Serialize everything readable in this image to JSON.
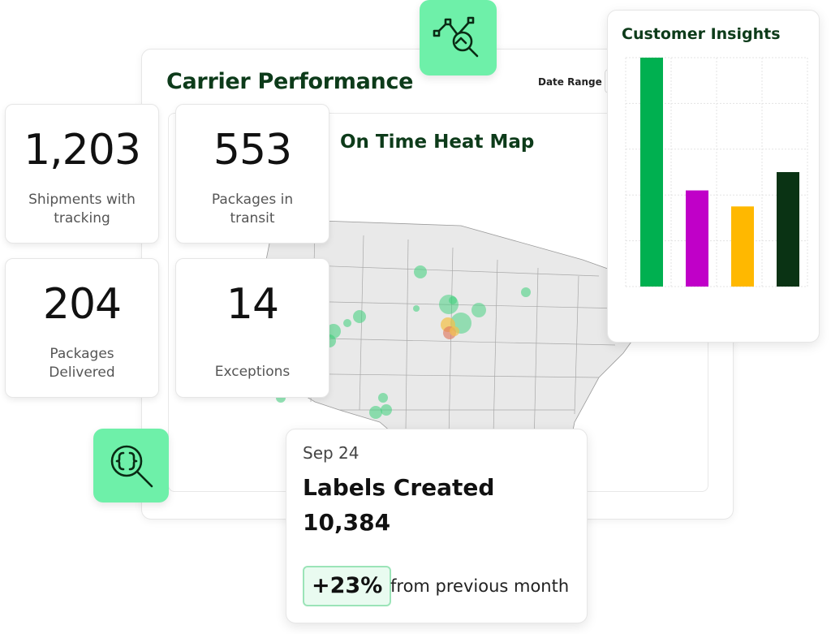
{
  "panel": {
    "title": "Carrier Performance",
    "date_range_label": "Date Range",
    "map_title": "On Time Heat Map"
  },
  "stats": [
    {
      "value": "1,203",
      "label_1": "Shipments with",
      "label_2": "tracking"
    },
    {
      "value": "553",
      "label_1": "Packages in",
      "label_2": "transit"
    },
    {
      "value": "204",
      "label_1": "Packages",
      "label_2": "Delivered"
    },
    {
      "value": "14",
      "label_1": "",
      "label_2": "Exceptions"
    }
  ],
  "insights": {
    "title": "Customer Insights",
    "chart_data": {
      "type": "bar",
      "categories": [
        "",
        "",
        "",
        ""
      ],
      "values": [
        100,
        42,
        35,
        50
      ],
      "colors": [
        "#00b050",
        "#c000c8",
        "#ffb800",
        "#0a3314"
      ],
      "ylim": [
        0,
        100
      ],
      "grid": true
    }
  },
  "labels_card": {
    "date": "Sep 24",
    "title": "Labels Created",
    "value": "10,384",
    "change": "+23%",
    "change_text": "from previous month"
  },
  "icons": {
    "top": "chart-magnifier-icon",
    "bottom": "code-search-icon"
  },
  "colors": {
    "accent": "#6ef0a9",
    "title_green": "#0d3b1a"
  }
}
